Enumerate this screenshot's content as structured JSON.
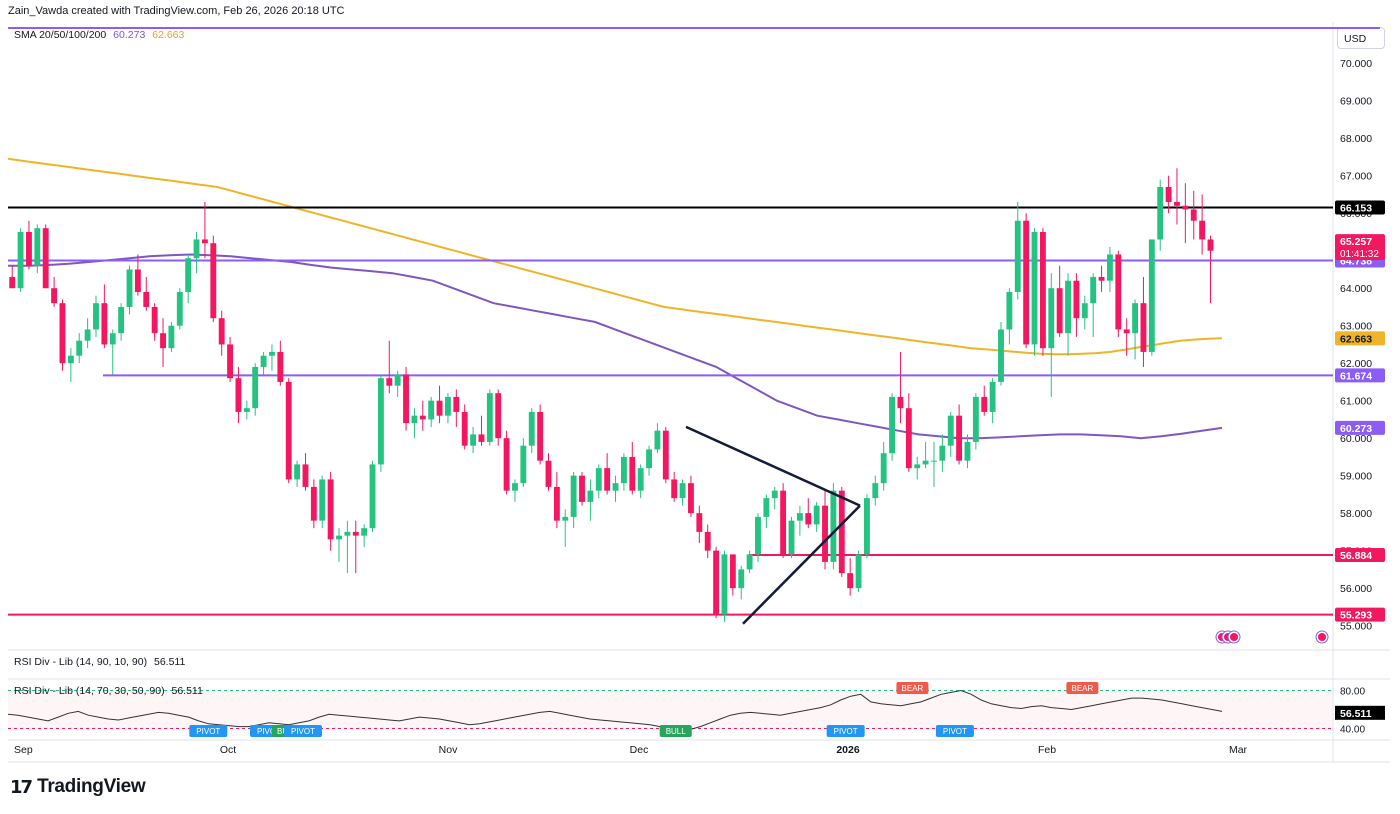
{
  "header": {
    "attribution": "Zain_Vawda created with TradingView.com, Feb 26, 2026 20:18 UTC"
  },
  "legend": {
    "sma_label": "SMA 20/50/100/200",
    "sma_value_1": "60.273",
    "sma_value_2": "62.663",
    "rsi_label_1": "RSI Div - Lib (14, 90, 10, 90)",
    "rsi_value_1": "56.511",
    "rsi_label_2": "RSI Div - Lib (14, 70, 30, 50, 90)",
    "rsi_value_2": "56.511"
  },
  "currency": "USD",
  "brand": {
    "logo_glyph": "17",
    "name": "TradingView"
  },
  "colors": {
    "up": "#26c281",
    "down": "#f2175e",
    "sma_fast": "#7e57c2",
    "sma_slow": "#f0b429",
    "support_purple": "#8b5cf6",
    "support_pink": "#f2175e",
    "resistance_black": "#000000",
    "triangle": "#131a3a"
  },
  "chart_data": {
    "type": "candlestick",
    "price_axis": {
      "ticks": [
        "70.000",
        "69.000",
        "68.000",
        "67.000",
        "66.000",
        "65.000",
        "64.000",
        "63.000",
        "62.000",
        "61.000",
        "60.000",
        "59.000",
        "58.000",
        "57.000",
        "56.000",
        "55.000"
      ],
      "ylim": [
        55,
        70
      ]
    },
    "time_axis": {
      "ticks": [
        "Sep",
        "Oct",
        "Nov",
        "Dec",
        "2026",
        "Feb",
        "Mar"
      ]
    },
    "horizontal_levels": [
      {
        "label": "66.153",
        "value": 66.153,
        "color": "#000000"
      },
      {
        "label": "64.738",
        "value": 64.738,
        "color": "#8b5cf6"
      },
      {
        "label": "61.674",
        "value": 61.674,
        "color": "#8b5cf6"
      },
      {
        "label": "56.884",
        "value": 56.884,
        "color": "#f2175e"
      },
      {
        "label": "55.293",
        "value": 55.293,
        "color": "#f2175e"
      }
    ],
    "price_labels": [
      {
        "label": "65.257",
        "sub": "01:41:32",
        "value": 65.257,
        "color": "#f2175e"
      },
      {
        "label": "62.663",
        "value": 62.663,
        "color": "#f0b429"
      },
      {
        "label": "60.273",
        "value": 60.273,
        "color": "#8b5cf6"
      }
    ],
    "candles": [
      [
        64.3,
        64.6,
        64.0,
        64.0
      ],
      [
        64.0,
        65.6,
        63.9,
        65.5
      ],
      [
        65.5,
        65.8,
        64.5,
        64.6
      ],
      [
        64.6,
        65.7,
        64.4,
        65.6
      ],
      [
        65.6,
        65.7,
        64.0,
        64.0
      ],
      [
        64.0,
        64.3,
        63.5,
        63.6
      ],
      [
        63.6,
        63.7,
        61.8,
        62.0
      ],
      [
        62.0,
        62.4,
        61.5,
        62.2
      ],
      [
        62.2,
        62.8,
        62.0,
        62.6
      ],
      [
        62.6,
        63.2,
        62.4,
        62.9
      ],
      [
        62.9,
        63.8,
        62.7,
        63.6
      ],
      [
        63.6,
        64.1,
        62.4,
        62.5
      ],
      [
        62.5,
        62.9,
        61.7,
        62.8
      ],
      [
        62.8,
        63.6,
        62.6,
        63.5
      ],
      [
        63.5,
        64.6,
        63.3,
        64.5
      ],
      [
        64.5,
        64.9,
        63.8,
        63.9
      ],
      [
        63.9,
        64.3,
        63.4,
        63.5
      ],
      [
        63.5,
        63.6,
        62.6,
        62.8
      ],
      [
        62.8,
        63.2,
        61.9,
        62.4
      ],
      [
        62.4,
        63.1,
        62.3,
        63.0
      ],
      [
        63.0,
        64.0,
        62.9,
        63.9
      ],
      [
        63.9,
        64.9,
        63.6,
        64.8
      ],
      [
        64.8,
        65.5,
        64.4,
        65.3
      ],
      [
        65.3,
        66.3,
        64.8,
        65.2
      ],
      [
        65.2,
        65.4,
        63.1,
        63.2
      ],
      [
        63.2,
        63.4,
        62.2,
        62.5
      ],
      [
        62.5,
        62.7,
        61.5,
        61.6
      ],
      [
        61.6,
        61.9,
        60.4,
        60.7
      ],
      [
        60.7,
        61.0,
        60.5,
        60.8
      ],
      [
        60.8,
        62.0,
        60.6,
        61.9
      ],
      [
        61.9,
        62.3,
        61.7,
        62.2
      ],
      [
        62.2,
        62.5,
        61.8,
        62.3
      ],
      [
        62.3,
        62.6,
        61.4,
        61.5
      ],
      [
        61.5,
        61.6,
        58.8,
        58.9
      ],
      [
        58.9,
        59.4,
        58.7,
        59.3
      ],
      [
        59.3,
        59.6,
        58.6,
        58.7
      ],
      [
        58.7,
        58.9,
        57.6,
        57.8
      ],
      [
        57.8,
        59.0,
        57.6,
        58.9
      ],
      [
        58.9,
        59.1,
        57.0,
        57.3
      ],
      [
        57.3,
        57.6,
        56.7,
        57.4
      ],
      [
        57.4,
        57.8,
        56.4,
        57.5
      ],
      [
        57.5,
        57.8,
        56.4,
        57.4
      ],
      [
        57.4,
        57.7,
        57.1,
        57.6
      ],
      [
        57.6,
        59.4,
        57.5,
        59.3
      ],
      [
        59.3,
        61.7,
        59.1,
        61.6
      ],
      [
        61.6,
        62.6,
        61.2,
        61.4
      ],
      [
        61.4,
        61.8,
        61.1,
        61.7
      ],
      [
        61.7,
        61.9,
        60.2,
        60.4
      ],
      [
        60.4,
        60.8,
        60.0,
        60.6
      ],
      [
        60.6,
        61.0,
        60.2,
        60.5
      ],
      [
        60.5,
        61.1,
        60.3,
        61.0
      ],
      [
        61.0,
        61.4,
        60.4,
        60.6
      ],
      [
        60.6,
        61.2,
        60.4,
        61.1
      ],
      [
        61.1,
        61.3,
        60.3,
        60.7
      ],
      [
        60.7,
        60.9,
        59.7,
        59.8
      ],
      [
        59.8,
        60.3,
        59.6,
        60.1
      ],
      [
        60.1,
        60.6,
        59.8,
        59.9
      ],
      [
        59.9,
        61.3,
        59.8,
        61.2
      ],
      [
        61.2,
        61.3,
        59.8,
        60.0
      ],
      [
        60.0,
        60.2,
        58.5,
        58.6
      ],
      [
        58.6,
        58.9,
        58.3,
        58.8
      ],
      [
        58.8,
        60.0,
        58.7,
        59.8
      ],
      [
        59.8,
        60.8,
        59.6,
        60.7
      ],
      [
        60.7,
        60.9,
        59.3,
        59.4
      ],
      [
        59.4,
        59.6,
        58.6,
        58.7
      ],
      [
        58.7,
        59.1,
        57.6,
        57.8
      ],
      [
        57.8,
        58.1,
        57.1,
        57.9
      ],
      [
        57.9,
        59.1,
        57.6,
        59.0
      ],
      [
        59.0,
        59.1,
        58.2,
        58.3
      ],
      [
        58.3,
        58.9,
        57.8,
        58.6
      ],
      [
        58.6,
        59.3,
        58.4,
        59.2
      ],
      [
        59.2,
        59.6,
        58.5,
        58.6
      ],
      [
        58.6,
        59.0,
        58.3,
        58.8
      ],
      [
        58.8,
        59.6,
        58.6,
        59.5
      ],
      [
        59.5,
        59.9,
        58.5,
        58.6
      ],
      [
        58.6,
        59.3,
        58.4,
        59.2
      ],
      [
        59.2,
        59.8,
        59.0,
        59.7
      ],
      [
        59.7,
        60.4,
        59.6,
        60.2
      ],
      [
        60.2,
        60.3,
        58.8,
        58.9
      ],
      [
        58.9,
        59.1,
        58.3,
        58.4
      ],
      [
        58.4,
        58.9,
        58.2,
        58.8
      ],
      [
        58.8,
        59.0,
        57.9,
        58.0
      ],
      [
        58.0,
        58.2,
        57.2,
        57.5
      ],
      [
        57.5,
        57.7,
        56.8,
        57.0
      ],
      [
        57.0,
        57.1,
        55.2,
        55.3
      ],
      [
        55.3,
        57.0,
        55.1,
        56.9
      ],
      [
        56.9,
        56.9,
        55.8,
        56.0
      ],
      [
        56.0,
        56.6,
        55.7,
        56.5
      ],
      [
        56.5,
        57.0,
        56.4,
        56.9
      ],
      [
        56.9,
        58.0,
        56.7,
        57.9
      ],
      [
        57.9,
        58.5,
        57.6,
        58.4
      ],
      [
        58.4,
        58.7,
        58.1,
        58.6
      ],
      [
        58.6,
        58.8,
        56.8,
        56.9
      ],
      [
        56.9,
        57.9,
        56.8,
        57.8
      ],
      [
        57.8,
        58.2,
        57.4,
        58.0
      ],
      [
        58.0,
        58.4,
        57.6,
        57.7
      ],
      [
        57.7,
        58.3,
        57.5,
        58.2
      ],
      [
        58.2,
        58.6,
        56.5,
        56.7
      ],
      [
        56.7,
        58.8,
        56.5,
        58.6
      ],
      [
        58.6,
        58.7,
        56.3,
        56.4
      ],
      [
        56.4,
        56.8,
        55.8,
        56.0
      ],
      [
        56.0,
        57.0,
        55.9,
        56.9
      ],
      [
        56.9,
        58.5,
        56.8,
        58.4
      ],
      [
        58.4,
        59.0,
        58.2,
        58.8
      ],
      [
        58.8,
        59.9,
        58.6,
        59.6
      ],
      [
        59.6,
        61.2,
        59.4,
        61.1
      ],
      [
        61.1,
        62.3,
        60.4,
        60.8
      ],
      [
        60.8,
        61.2,
        59.1,
        59.2
      ],
      [
        59.2,
        59.5,
        58.9,
        59.3
      ],
      [
        59.3,
        59.9,
        59.2,
        59.4
      ],
      [
        59.4,
        59.9,
        58.7,
        59.4
      ],
      [
        59.4,
        60.1,
        59.1,
        59.8
      ],
      [
        59.8,
        60.7,
        59.5,
        60.6
      ],
      [
        60.6,
        60.9,
        59.3,
        59.4
      ],
      [
        59.4,
        60.1,
        59.2,
        59.9
      ],
      [
        59.9,
        61.2,
        59.7,
        61.1
      ],
      [
        61.1,
        61.4,
        60.6,
        60.7
      ],
      [
        60.7,
        61.6,
        60.4,
        61.5
      ],
      [
        61.5,
        63.1,
        61.4,
        62.9
      ],
      [
        62.9,
        64.0,
        62.5,
        63.9
      ],
      [
        63.9,
        66.3,
        63.7,
        65.8
      ],
      [
        65.8,
        66.0,
        62.4,
        62.5
      ],
      [
        62.5,
        65.6,
        62.2,
        65.5
      ],
      [
        65.5,
        65.6,
        62.2,
        62.4
      ],
      [
        62.4,
        64.4,
        61.1,
        64.0
      ],
      [
        64.0,
        64.6,
        62.7,
        62.8
      ],
      [
        62.8,
        64.4,
        62.2,
        64.2
      ],
      [
        64.2,
        64.4,
        62.7,
        63.2
      ],
      [
        63.2,
        63.8,
        62.9,
        63.6
      ],
      [
        63.6,
        64.4,
        62.7,
        64.3
      ],
      [
        64.3,
        64.6,
        63.9,
        64.2
      ],
      [
        64.2,
        65.1,
        63.9,
        64.9
      ],
      [
        64.9,
        65.0,
        62.7,
        62.9
      ],
      [
        62.9,
        63.2,
        62.2,
        62.8
      ],
      [
        62.8,
        63.7,
        62.1,
        63.6
      ],
      [
        63.6,
        64.3,
        61.9,
        62.3
      ],
      [
        62.3,
        65.3,
        62.2,
        65.3
      ],
      [
        65.3,
        66.9,
        65.0,
        66.7
      ],
      [
        66.7,
        67.0,
        66.0,
        66.3
      ],
      [
        66.3,
        67.2,
        65.7,
        66.2
      ],
      [
        66.2,
        66.8,
        65.2,
        66.1
      ],
      [
        66.1,
        66.6,
        65.3,
        65.8
      ],
      [
        65.8,
        66.5,
        64.9,
        65.3
      ],
      [
        65.3,
        65.4,
        63.6,
        65.0
      ]
    ],
    "sma200": [
      67.45,
      67.4,
      67.35,
      67.3,
      67.25,
      67.2,
      67.15,
      67.1,
      67.05,
      67.0,
      66.95,
      66.9,
      66.85,
      66.8,
      66.75,
      66.7,
      66.6,
      66.5,
      66.4,
      66.3,
      66.2,
      66.1,
      66.0,
      65.9,
      65.8,
      65.7,
      65.6,
      65.5,
      65.4,
      65.3,
      65.2,
      65.1,
      65.0,
      64.9,
      64.8,
      64.7,
      64.6,
      64.5,
      64.4,
      64.3,
      64.2,
      64.1,
      64.0,
      63.9,
      63.8,
      63.7,
      63.6,
      63.5,
      63.45,
      63.4,
      63.35,
      63.3,
      63.25,
      63.2,
      63.15,
      63.1,
      63.05,
      63.0,
      62.95,
      62.9,
      62.85,
      62.8,
      62.75,
      62.7,
      62.65,
      62.6,
      62.55,
      62.5,
      62.45,
      62.4,
      62.37,
      62.34,
      62.31,
      62.28,
      62.25,
      62.24,
      62.24,
      62.25,
      62.27,
      62.3,
      62.36,
      62.42,
      62.48,
      62.54,
      62.6,
      62.63,
      62.65,
      62.663
    ],
    "sma_other": [
      64.6,
      64.6,
      64.62,
      64.65,
      64.7,
      64.75,
      64.8,
      64.85,
      64.88,
      64.9,
      64.88,
      64.85,
      64.8,
      64.75,
      64.7,
      64.62,
      64.55,
      64.5,
      64.45,
      64.4,
      64.3,
      64.2,
      64.0,
      63.8,
      63.6,
      63.5,
      63.4,
      63.3,
      63.2,
      63.1,
      62.9,
      62.7,
      62.5,
      62.3,
      62.1,
      61.9,
      61.6,
      61.3,
      61.0,
      60.8,
      60.6,
      60.5,
      60.4,
      60.3,
      60.2,
      60.1,
      60.05,
      60.0,
      60.0,
      60.02,
      60.05,
      60.08,
      60.1,
      60.1,
      60.08,
      60.05,
      60.0,
      60.05,
      60.12,
      60.2,
      60.273
    ],
    "annotations": [
      {
        "text": "PIVOT",
        "type": "bull",
        "pos": 0.165
      },
      {
        "text": "PIVOT",
        "type": "bull",
        "pos": 0.215
      },
      {
        "text": "BUL",
        "type": "bull",
        "pos": 0.228
      },
      {
        "text": "PIVOT",
        "type": "bull",
        "pos": 0.243
      },
      {
        "text": "BULL",
        "type": "bull",
        "pos": 0.55
      },
      {
        "text": "PIVOT",
        "type": "bull",
        "pos": 0.69
      },
      {
        "text": "BEAR",
        "type": "bear",
        "pos": 0.745
      },
      {
        "text": "PIVOT",
        "type": "bull",
        "pos": 0.78
      },
      {
        "text": "BEAR",
        "type": "bear",
        "pos": 0.885
      }
    ],
    "rsi_axis": {
      "ticks": [
        "80.00",
        "40.00"
      ],
      "current": "56.511"
    },
    "rsi_series": [
      55,
      54,
      52,
      50,
      48,
      52,
      56,
      58,
      54,
      52,
      50,
      49,
      51,
      53,
      55,
      57,
      56,
      54,
      52,
      48,
      45,
      44,
      43,
      42,
      42,
      44,
      46,
      45,
      44,
      46,
      48,
      52,
      55,
      54,
      53,
      52,
      51,
      50,
      49,
      48,
      50,
      52,
      51,
      50,
      48,
      46,
      44,
      45,
      47,
      49,
      51,
      53,
      55,
      57,
      58,
      56,
      54,
      52,
      50,
      49,
      48,
      47,
      46,
      45,
      44,
      42,
      40,
      38,
      39,
      42,
      46,
      50,
      54,
      56,
      57,
      56,
      55,
      54,
      56,
      58,
      60,
      62,
      65,
      70,
      74,
      76,
      68,
      66,
      65,
      64,
      66,
      68,
      72,
      76,
      78,
      80,
      76,
      70,
      66,
      64,
      62,
      61,
      63,
      64,
      62,
      61,
      60,
      62,
      64,
      66,
      68,
      70,
      72,
      72,
      71,
      70,
      68,
      66,
      64,
      62,
      60,
      58
    ]
  }
}
